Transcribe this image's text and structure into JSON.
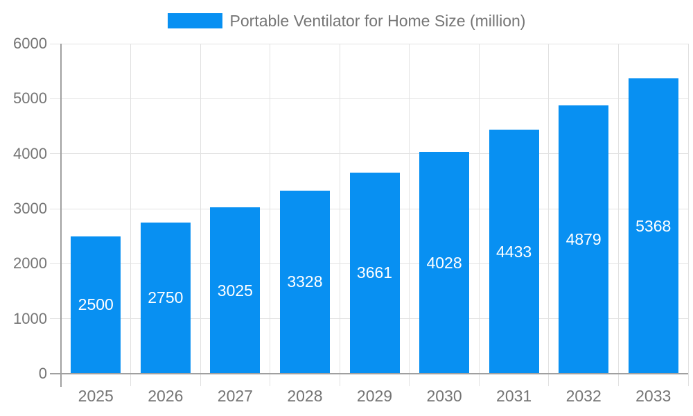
{
  "chart_data": {
    "type": "bar",
    "title": "Portable Ventilator for Home Size (million)",
    "categories": [
      "2025",
      "2026",
      "2027",
      "2028",
      "2029",
      "2030",
      "2031",
      "2032",
      "2033"
    ],
    "values": [
      2500,
      2750,
      3025,
      3328,
      3661,
      4028,
      4433,
      4879,
      5368
    ],
    "xlabel": "",
    "ylabel": "",
    "ylim": [
      0,
      6000
    ],
    "yticks": [
      0,
      1000,
      2000,
      3000,
      4000,
      5000,
      6000
    ],
    "grid": true,
    "legend_position": "top",
    "data_labels": "inside-center",
    "colors": {
      "bar": "#0890f2",
      "bar_label_text": "#ffffff",
      "axis_text": "#757575",
      "grid_line": "#e2e2e2",
      "axis_line": "#a0a0a0"
    }
  }
}
